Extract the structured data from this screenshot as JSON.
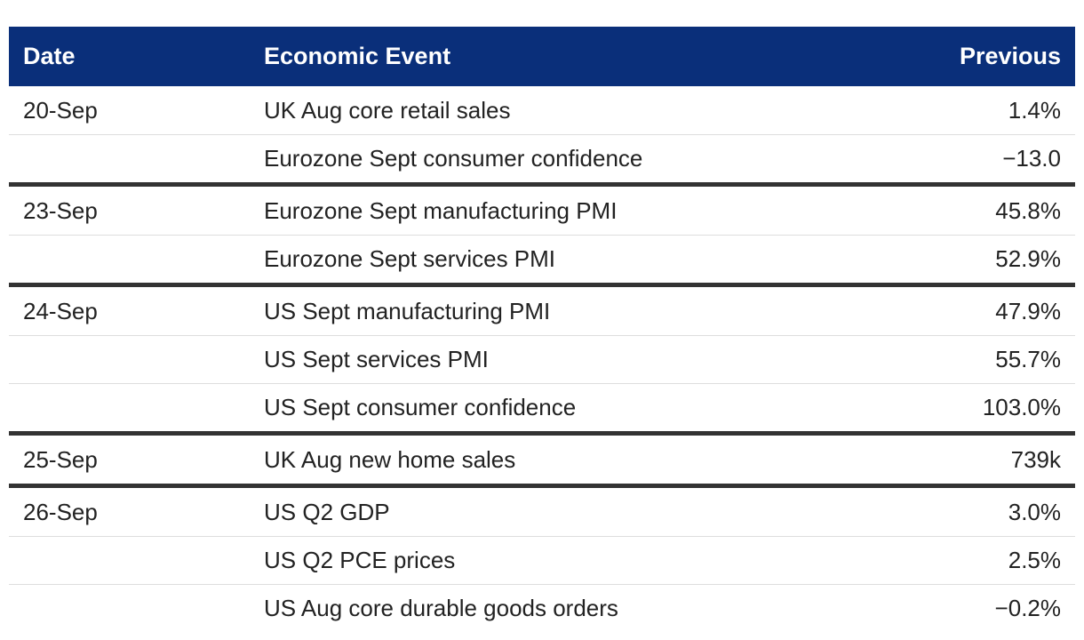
{
  "header": {
    "date": "Date",
    "event": "Economic Event",
    "previous": "Previous"
  },
  "groups": [
    {
      "date": "20-Sep",
      "rows": [
        {
          "event": "UK Aug core retail sales",
          "previous": "1.4%"
        },
        {
          "event": "Eurozone Sept consumer confidence",
          "previous": "−13.0"
        }
      ]
    },
    {
      "date": "23-Sep",
      "rows": [
        {
          "event": "Eurozone Sept manufacturing PMI",
          "previous": "45.8%"
        },
        {
          "event": "Eurozone Sept services PMI",
          "previous": "52.9%"
        }
      ]
    },
    {
      "date": "24-Sep",
      "rows": [
        {
          "event": "US Sept manufacturing PMI",
          "previous": "47.9%"
        },
        {
          "event": "US Sept services PMI",
          "previous": "55.7%"
        },
        {
          "event": "US Sept consumer confidence",
          "previous": "103.0%"
        }
      ]
    },
    {
      "date": "25-Sep",
      "rows": [
        {
          "event": "UK Aug new home sales",
          "previous": "739k"
        }
      ]
    },
    {
      "date": "26-Sep",
      "rows": [
        {
          "event": "US Q2 GDP",
          "previous": "3.0%"
        },
        {
          "event": "US Q2 PCE prices",
          "previous": "2.5%"
        },
        {
          "event": "US Aug core durable goods orders",
          "previous": "−0.2%"
        }
      ]
    }
  ]
}
